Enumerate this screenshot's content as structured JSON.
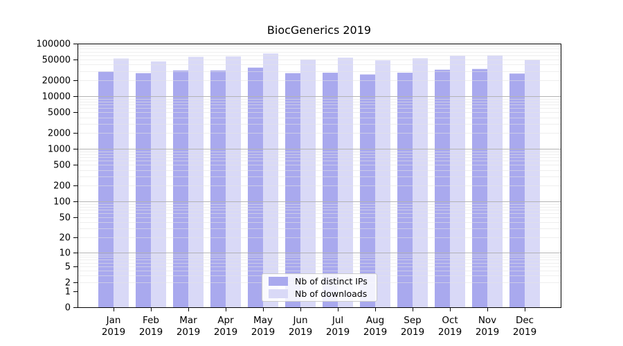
{
  "chart_data": {
    "type": "bar",
    "title": "BiocGenerics 2019",
    "categories": [
      "Jan",
      "Feb",
      "Mar",
      "Apr",
      "May",
      "Jun",
      "Jul",
      "Aug",
      "Sep",
      "Oct",
      "Nov",
      "Dec"
    ],
    "year_label": "2019",
    "series": [
      {
        "name": "Nb of distinct IPs",
        "color": "#a9a9ee",
        "values": [
          29500,
          27500,
          31000,
          31000,
          35000,
          27500,
          28000,
          26000,
          28000,
          32000,
          33000,
          27000
        ]
      },
      {
        "name": "Nb of downloads",
        "color": "#d9d9f7",
        "values": [
          52000,
          46000,
          56000,
          57000,
          65000,
          50000,
          54000,
          48000,
          52500,
          59000,
          60000,
          49000
        ]
      }
    ],
    "y_axis": {
      "scale": "log10(v+1)",
      "ticks": [
        0,
        1,
        2,
        5,
        10,
        20,
        50,
        100,
        200,
        500,
        1000,
        2000,
        5000,
        10000,
        20000,
        50000,
        100000
      ],
      "max": 100000
    },
    "grid": {
      "major_color": "#b3b3b3",
      "minor_color": "#e3e3e3"
    },
    "legend": {
      "position": "bottom-center"
    },
    "axis_color": "#000000"
  }
}
